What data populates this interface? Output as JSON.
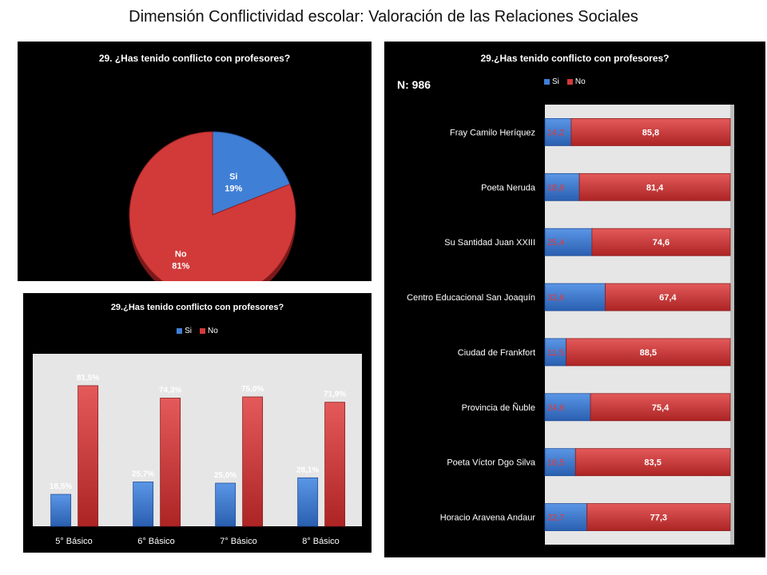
{
  "page_title": "Dimensión Conflictividad escolar: Valoración de las Relaciones Sociales",
  "colors": {
    "si": "#3f7fd6",
    "no": "#d23a3a",
    "plot_bg": "#e6e6e6",
    "panel_bg": "#000000"
  },
  "pie": {
    "title": "29. ¿Has tenido conflicto con profesores?"
  },
  "bar_grades": {
    "title": "29.¿Has tenido conflicto con profesores?",
    "legend": [
      "Si",
      "No"
    ]
  },
  "bar_schools": {
    "title": "29.¿Has tenido conflicto con profesores?",
    "n_label": "N: 986",
    "legend": [
      "Si",
      "No"
    ]
  },
  "chart_data": [
    {
      "type": "pie",
      "title": "29. ¿Has tenido conflicto con profesores?",
      "slices": [
        {
          "label": "Si",
          "value": 19,
          "value_label": "19%"
        },
        {
          "label": "No",
          "value": 81,
          "value_label": "81%"
        }
      ]
    },
    {
      "type": "bar",
      "title": "29.¿Has tenido conflicto con profesores?",
      "categories": [
        "5° Básico",
        "6° Básico",
        "7° Básico",
        "8° Básico"
      ],
      "series": [
        {
          "name": "Si",
          "values": [
            18.5,
            25.7,
            25.0,
            28.1
          ],
          "value_labels": [
            "18,5%",
            "25,7%",
            "25,0%",
            "28,1%"
          ]
        },
        {
          "name": "No",
          "values": [
            81.5,
            74.3,
            75.0,
            71.9
          ],
          "value_labels": [
            "81,5%",
            "74,3%",
            "75,0%",
            "71,9%"
          ]
        }
      ],
      "ylim": [
        0,
        100
      ],
      "legend_position": "top"
    },
    {
      "type": "bar",
      "orientation": "horizontal",
      "stacked": true,
      "title": "29.¿Has tenido conflicto con profesores?",
      "categories": [
        "Fray Camilo Heríquez",
        "Poeta Neruda",
        "Su Santidad Juan XXIII",
        "Centro Educacional San Joaquín",
        "Ciudad de Frankfort",
        "Provincia de Ñuble",
        "Poeta Víctor Dgo Silva",
        "Horacio Aravena Andaur"
      ],
      "series": [
        {
          "name": "Si",
          "values": [
            14.2,
            18.6,
            25.4,
            32.6,
            11.5,
            24.6,
            16.5,
            22.7
          ],
          "value_labels": [
            "14,2",
            "18,6",
            "25,4",
            "32,6",
            "11,5",
            "24,6",
            "16,5",
            "22,7"
          ]
        },
        {
          "name": "No",
          "values": [
            85.8,
            81.4,
            74.6,
            67.4,
            88.5,
            75.4,
            83.5,
            77.3
          ],
          "value_labels": [
            "85,8",
            "81,4",
            "74,6",
            "67,4",
            "88,5",
            "75,4",
            "83,5",
            "77,3"
          ]
        }
      ],
      "xlim": [
        0,
        100
      ],
      "legend_position": "top"
    }
  ]
}
